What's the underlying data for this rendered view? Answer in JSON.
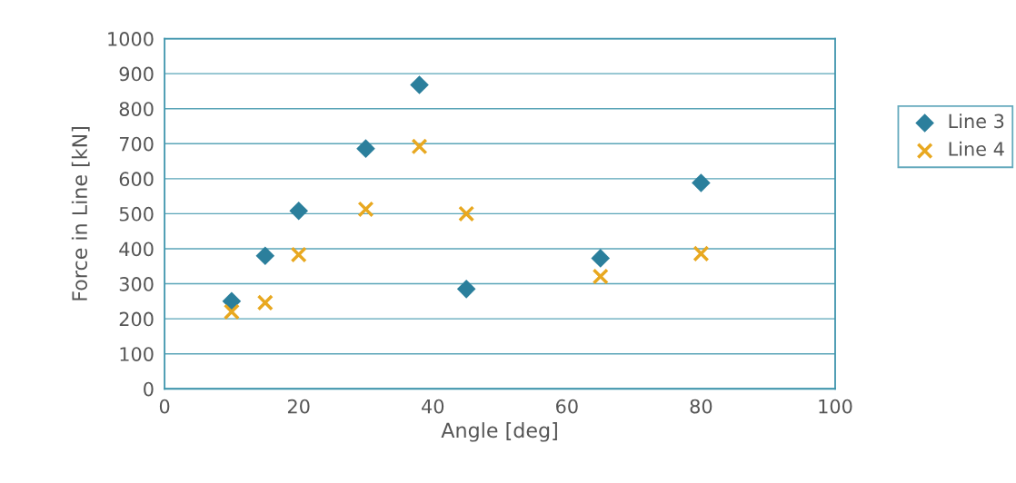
{
  "chart_data": {
    "type": "scatter",
    "xlabel": "Angle [deg]",
    "ylabel": "Force in Line [kN]",
    "xlim": [
      0,
      100
    ],
    "xticks": [
      0,
      20,
      40,
      60,
      80,
      100
    ],
    "ylim": [
      0,
      1000
    ],
    "yticks": [
      0,
      100,
      200,
      300,
      400,
      500,
      600,
      700,
      800,
      900,
      1000
    ],
    "grid": "y",
    "legend": "right",
    "x": [
      10,
      15,
      20,
      30,
      38,
      45,
      65,
      80
    ],
    "series": [
      {
        "name": "Line 3",
        "color": "#2b7f9c",
        "marker": "diamond",
        "values": [
          250,
          380,
          508,
          686,
          868,
          285,
          373,
          588
        ]
      },
      {
        "name": "Line 4",
        "color": "#e8a820",
        "marker": "cross",
        "values": [
          220,
          246,
          383,
          513,
          692,
          500,
          321,
          386
        ]
      }
    ]
  }
}
